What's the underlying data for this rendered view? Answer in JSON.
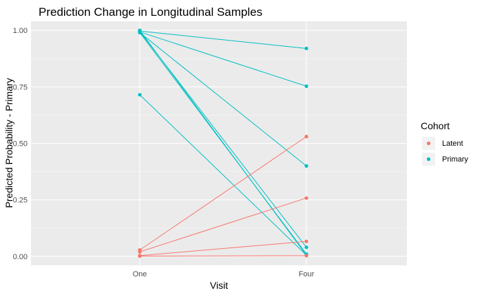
{
  "chart_data": {
    "type": "line",
    "title": "Prediction Change in Longitudinal Samples",
    "xlabel": "Visit",
    "ylabel": "Predicted Probability - Primary",
    "categories": [
      "One",
      "Four"
    ],
    "yticks": [
      "0.00",
      "0.25",
      "0.50",
      "0.75",
      "1.00"
    ],
    "ylim": [
      -0.04,
      1.04
    ],
    "grid": true,
    "legend": {
      "title": "Cohort",
      "position": "right",
      "entries": [
        {
          "label": "Latent",
          "color": "#F8766D"
        },
        {
          "label": "Primary",
          "color": "#00BFC4"
        }
      ]
    },
    "series": [
      {
        "cohort": "Primary",
        "values": [
          0.997,
          0.92
        ]
      },
      {
        "cohort": "Primary",
        "values": [
          0.993,
          0.753
        ]
      },
      {
        "cohort": "Primary",
        "values": [
          0.99,
          0.4
        ]
      },
      {
        "cohort": "Primary",
        "values": [
          0.995,
          0.04
        ]
      },
      {
        "cohort": "Primary",
        "values": [
          0.99,
          0.01
        ]
      },
      {
        "cohort": "Primary",
        "values": [
          1.0,
          0.005
        ]
      },
      {
        "cohort": "Primary",
        "values": [
          0.715,
          0.005
        ]
      },
      {
        "cohort": "Latent",
        "values": [
          0.028,
          0.53
        ]
      },
      {
        "cohort": "Latent",
        "values": [
          0.02,
          0.258
        ]
      },
      {
        "cohort": "Latent",
        "values": [
          0.003,
          0.066
        ]
      },
      {
        "cohort": "Latent",
        "values": [
          0.001,
          0.003
        ]
      }
    ]
  }
}
